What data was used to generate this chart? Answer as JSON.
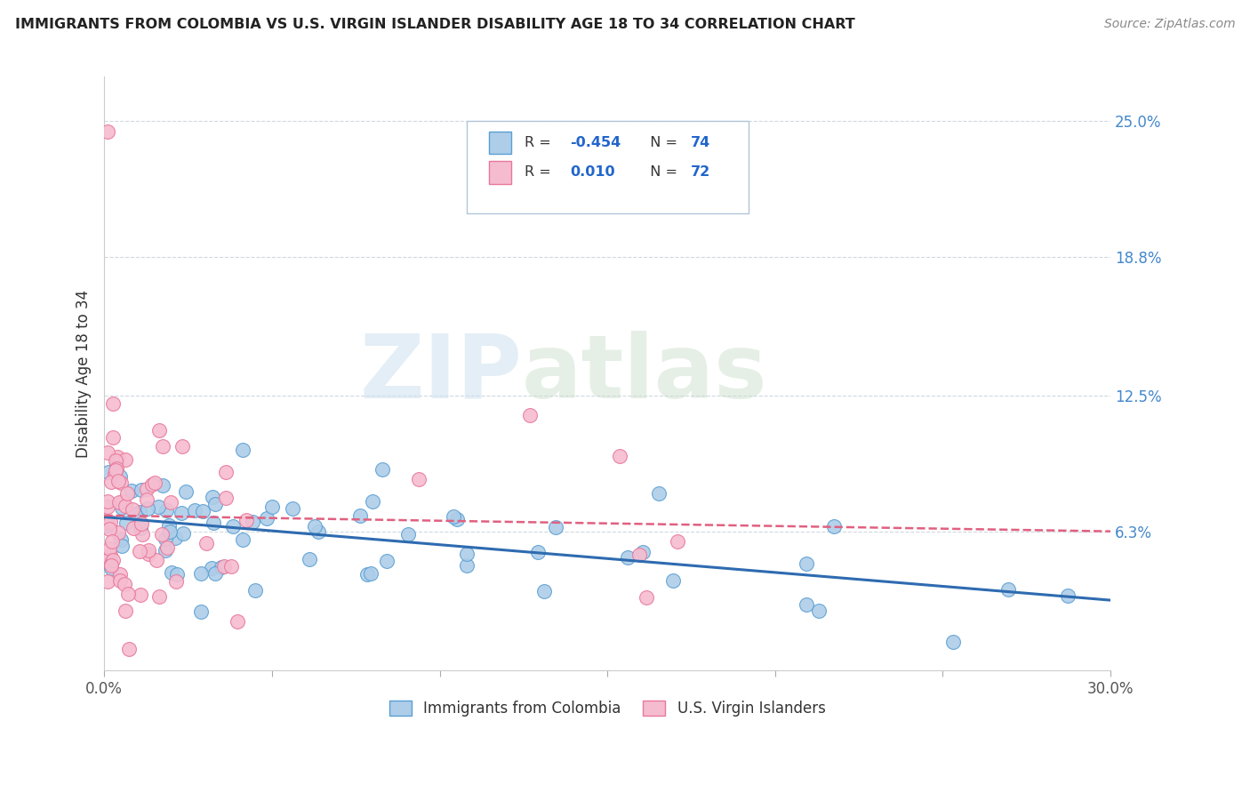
{
  "title": "IMMIGRANTS FROM COLOMBIA VS U.S. VIRGIN ISLANDER DISABILITY AGE 18 TO 34 CORRELATION CHART",
  "source": "Source: ZipAtlas.com",
  "ylabel": "Disability Age 18 to 34",
  "legend_blue_label": "Immigrants from Colombia",
  "legend_pink_label": "U.S. Virgin Islanders",
  "xmin": 0.0,
  "xmax": 0.3,
  "ymin": 0.0,
  "ymax": 0.27,
  "right_ytick_labels": [
    "6.3%",
    "12.5%",
    "18.8%",
    "25.0%"
  ],
  "right_ytick_values": [
    0.063,
    0.125,
    0.188,
    0.25
  ],
  "blue_color": "#aecde8",
  "blue_edge": "#5a9fd4",
  "pink_color": "#f5bcd0",
  "pink_edge": "#e8789a",
  "blue_line_color": "#2e6bb0",
  "pink_line_color": "#e06080",
  "blue_seed": 101,
  "pink_seed": 202,
  "n_blue": 74,
  "n_pink": 72
}
